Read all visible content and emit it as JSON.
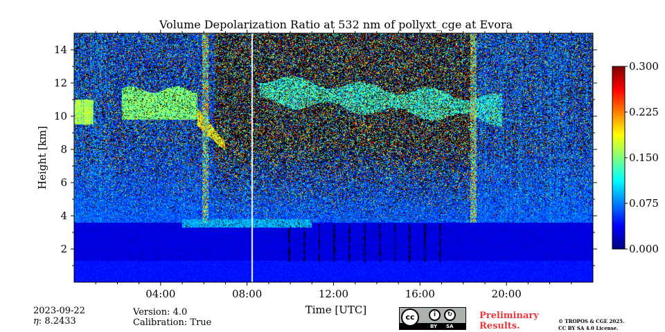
{
  "chart_data": {
    "type": "heatmap",
    "title": "Volume Depolarization Ratio at 532 nm of pollyxt_cge at Evora",
    "xlabel": "Time [UTC]",
    "ylabel": "Height [km]",
    "xlim": [
      0,
      24
    ],
    "ylim": [
      0,
      15
    ],
    "x_ticks": [
      {
        "value": 4,
        "label": "04:00"
      },
      {
        "value": 8,
        "label": "08:00"
      },
      {
        "value": 12,
        "label": "12:00"
      },
      {
        "value": 16,
        "label": "16:00"
      },
      {
        "value": 20,
        "label": "20:00"
      }
    ],
    "y_ticks": [
      {
        "value": 2,
        "label": "2"
      },
      {
        "value": 4,
        "label": "4"
      },
      {
        "value": 6,
        "label": "6"
      },
      {
        "value": 8,
        "label": "8"
      },
      {
        "value": 10,
        "label": "10"
      },
      {
        "value": 12,
        "label": "12"
      },
      {
        "value": 14,
        "label": "14"
      }
    ],
    "colorbar": {
      "colormap": "jet",
      "range": [
        0.0,
        0.3
      ],
      "ticks": [
        {
          "value": 0.0,
          "label": "0.000"
        },
        {
          "value": 0.075,
          "label": "0.075"
        },
        {
          "value": 0.15,
          "label": "0.150"
        },
        {
          "value": 0.225,
          "label": "0.225"
        },
        {
          "value": 0.3,
          "label": "0.300"
        }
      ]
    },
    "features": [
      {
        "name": "cirrus-cloud-morning",
        "time_range": [
          0.0,
          6.8
        ],
        "height_range": [
          7.8,
          11.5
        ],
        "ratio": 0.16
      },
      {
        "name": "cirrus-cloud-midday",
        "time_range": [
          8.5,
          20.0
        ],
        "height_range": [
          9.5,
          12.5
        ],
        "ratio": 0.12
      },
      {
        "name": "boundary-layer",
        "time_range": [
          0.0,
          24.0
        ],
        "height_range": [
          0.0,
          3.5
        ],
        "ratio": 0.03
      },
      {
        "name": "aerosol-layer",
        "time_range": [
          5.0,
          11.0
        ],
        "height_range": [
          3.3,
          3.8
        ],
        "ratio": 0.08
      }
    ]
  },
  "footer": {
    "date": "2023-09-22",
    "eta": "8.2433",
    "eta_label": ": ",
    "eta_symbol": "η",
    "version": "Version: 4.0",
    "calibration": "Calibration: True",
    "preliminary_line1": "Preliminary",
    "preliminary_line2": "Results.",
    "copyright_line1": "© TROPOS & CGE 2025.",
    "copyright_line2": "CC BY SA 4.0 License.",
    "license_cc": "cc",
    "license_by": "BY",
    "license_sa": "SA"
  },
  "colors": {
    "jet_low": "#00007f",
    "jet_high": "#7f0000",
    "preliminary": "#e8383d"
  }
}
